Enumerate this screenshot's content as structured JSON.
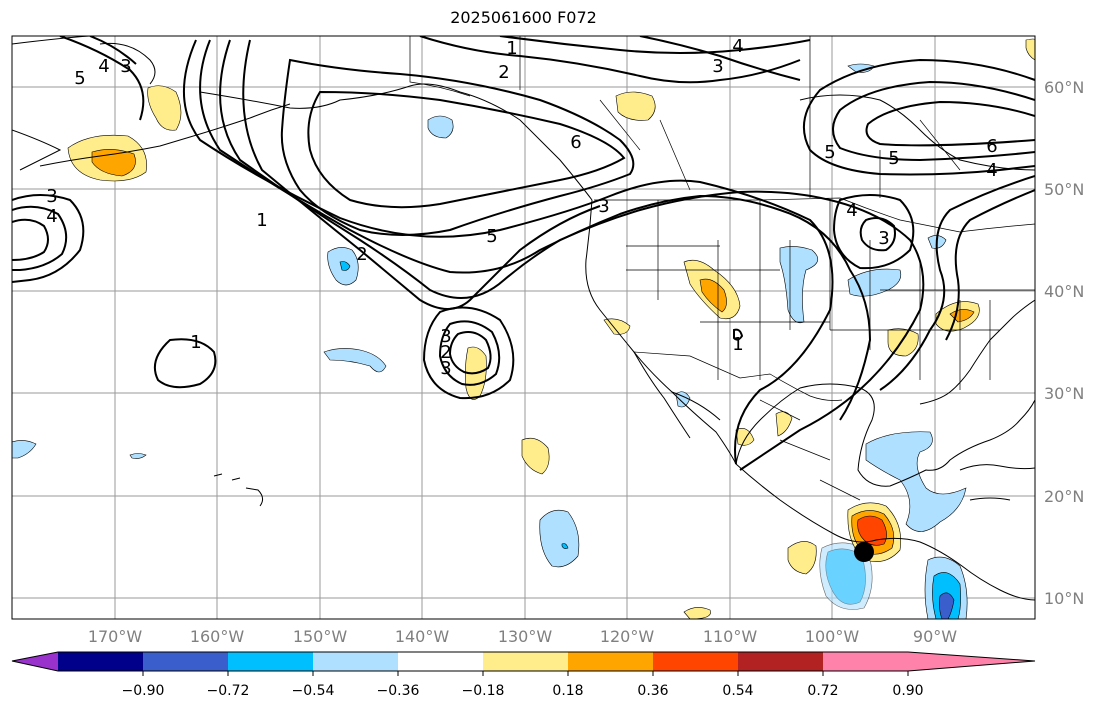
{
  "title": "2025061600 F072",
  "latitude_labels": [
    "60°N",
    "50°N",
    "40°N",
    "30°N",
    "20°N",
    "10°N"
  ],
  "longitude_labels": [
    "170°W",
    "160°W",
    "150°W",
    "140°W",
    "130°W",
    "120°W",
    "110°W",
    "100°W",
    "90°W"
  ],
  "colorbar": {
    "tick_labels": [
      "−0.90",
      "−0.72",
      "−0.54",
      "−0.36",
      "−0.18",
      "0.18",
      "0.36",
      "0.54",
      "0.72",
      "0.90"
    ],
    "colors": [
      "#9932cc",
      "#00008b",
      "#3a5fcd",
      "#00bfff",
      "#b0e0ff",
      "#ffffff",
      "#ffec8b",
      "#ffa500",
      "#ff4500",
      "#b22222",
      "#ff82ab"
    ]
  },
  "contour_labels": [
    "5",
    "4",
    "3",
    "1",
    "2",
    "4",
    "3",
    "6",
    "5",
    "6",
    "4",
    "5",
    "3",
    "4",
    "3",
    "1",
    "2",
    "5",
    "3",
    "2",
    "3",
    "1",
    "1",
    "4",
    "3"
  ],
  "marker": {
    "color": "#000000",
    "shape": "filled-circle"
  }
}
